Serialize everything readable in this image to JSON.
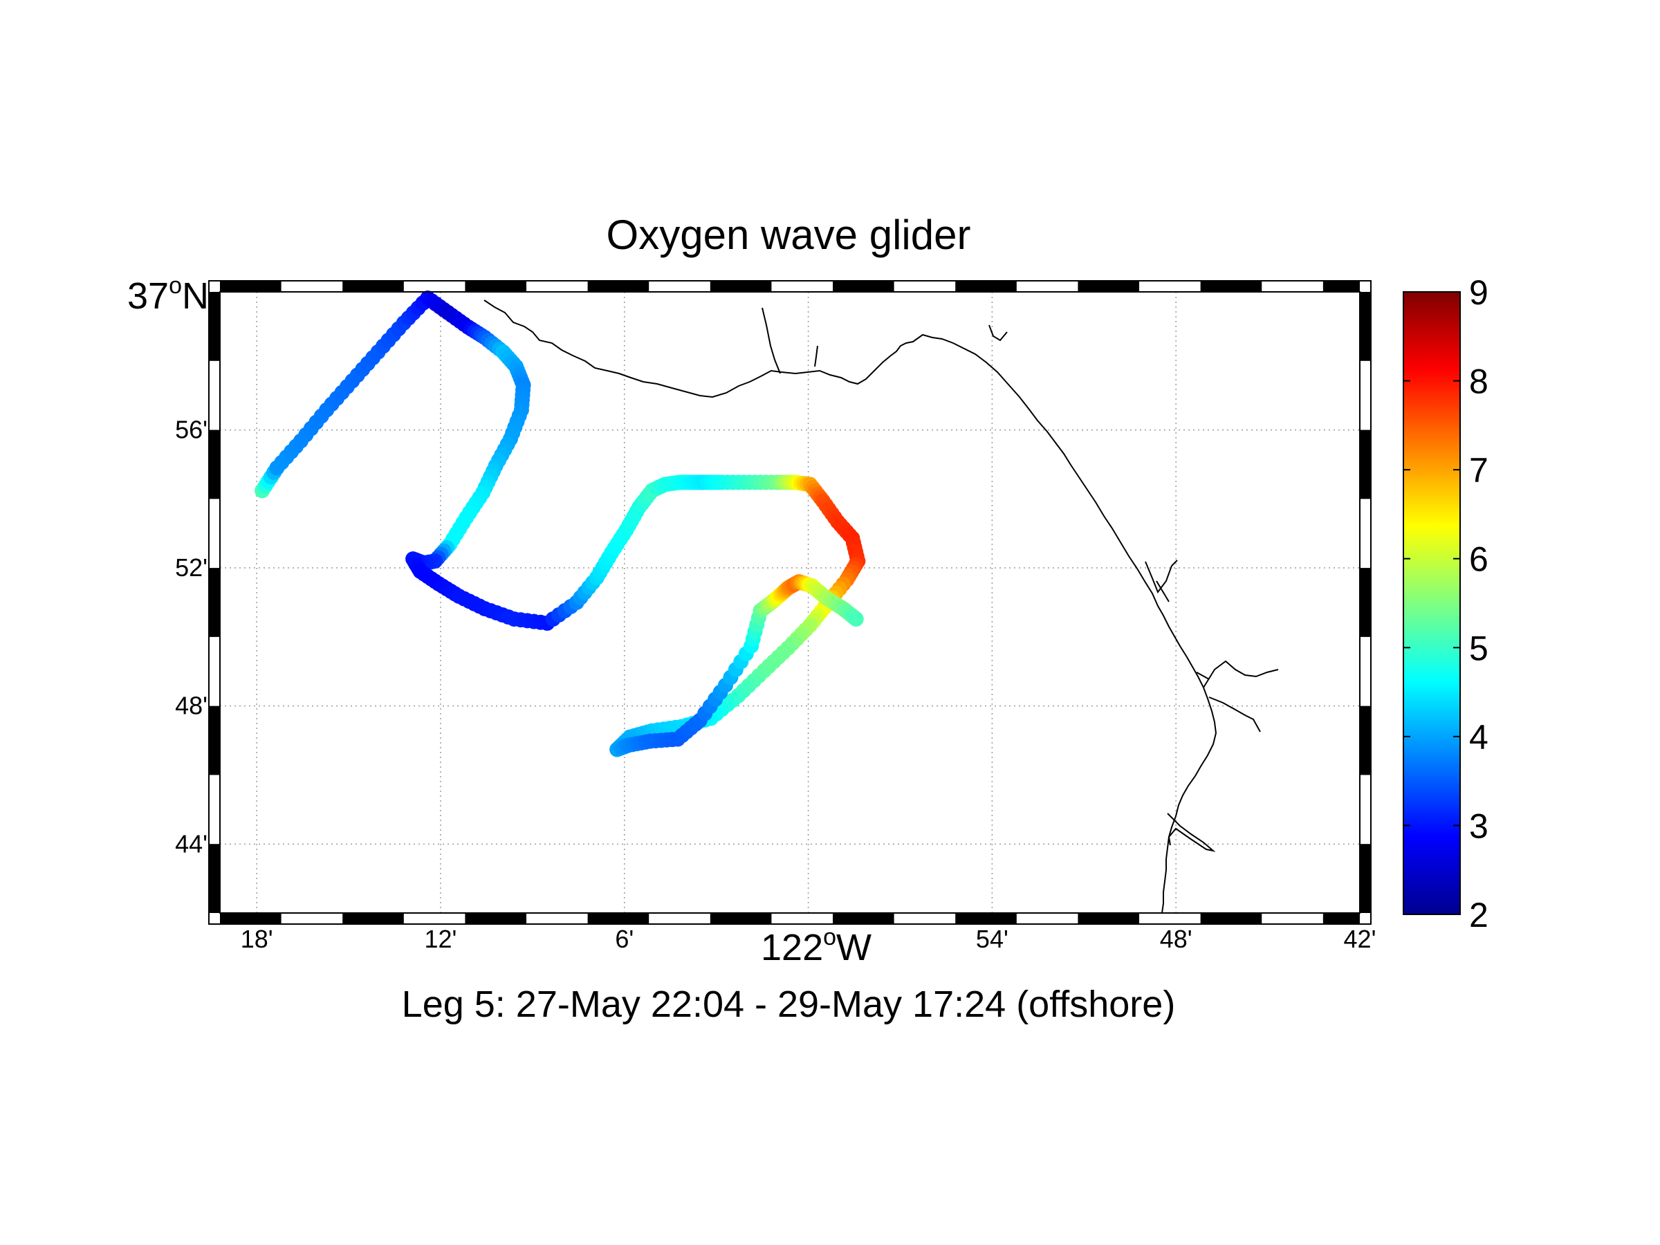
{
  "map": {
    "title": "Oxygen wave glider",
    "subtitle": "Leg 5: 27-May 22:04 - 29-May 17:24 (offshore)",
    "projection": "Mercator",
    "lon_range": [
      -122.32,
      -121.7
    ],
    "lat_range": [
      36.7,
      37.0
    ],
    "x_ticks": [
      {
        "lon": -122.3,
        "label": "18'"
      },
      {
        "lon": -122.2,
        "label": "12'"
      },
      {
        "lon": -122.1,
        "label": "6'"
      },
      {
        "lon": -122.0,
        "label": ""
      },
      {
        "lon": -121.9,
        "label": "54'"
      },
      {
        "lon": -121.8,
        "label": "48'"
      },
      {
        "lon": -121.7,
        "label": "42'"
      }
    ],
    "x_main_label": {
      "num": "122",
      "sup": "o",
      "hem": "W"
    },
    "y_ticks": [
      {
        "lat": 36.9333,
        "label": "56'"
      },
      {
        "lat": 36.8667,
        "label": "52'"
      },
      {
        "lat": 36.8,
        "label": "48'"
      },
      {
        "lat": 36.7333,
        "label": "44'"
      }
    ],
    "y_main_label": {
      "num": "37",
      "sup": "o",
      "hem": "N"
    },
    "grid": true,
    "border_style": "alternating black-white"
  },
  "colorbar": {
    "colormap": "jet",
    "range": [
      2,
      9
    ],
    "ticks": [
      "2",
      "3",
      "4",
      "5",
      "6",
      "7",
      "8",
      "9"
    ],
    "position": "right"
  },
  "chart_data": {
    "type": "scatter",
    "series": [
      {
        "values_meaning": "oxygen",
        "lon": [
          -122.297,
          -122.289,
          -122.276,
          -122.262,
          -122.248,
          -122.234,
          -122.22,
          -122.207,
          -122.196,
          -122.185,
          -122.176,
          -122.166,
          -122.159,
          -122.155,
          -122.156,
          -122.162,
          -122.17,
          -122.177,
          -122.186,
          -122.195,
          -122.203,
          -122.209,
          -122.215,
          -122.211,
          -122.201,
          -122.19,
          -122.176,
          -122.16,
          -122.142,
          -122.126,
          -122.115,
          -122.107,
          -122.099,
          -122.092,
          -122.085,
          -122.078,
          -122.07,
          -122.064,
          -122.057,
          -122.047,
          -122.032,
          -122.017,
          -122.007,
          -121.999,
          -121.992,
          -121.984,
          -121.976,
          -121.973,
          -121.979,
          -121.989,
          -121.999,
          -122.011,
          -122.024,
          -122.038,
          -122.053,
          -122.069,
          -122.085,
          -122.097,
          -122.104,
          -122.098,
          -122.086,
          -122.071,
          -122.059,
          -122.045,
          -122.031,
          -122.026,
          -122.02,
          -122.016,
          -122.011,
          -122.007,
          -122.005,
          -121.998,
          -121.99,
          -121.981,
          -121.974
        ],
        "lat": [
          36.904,
          36.915,
          36.928,
          36.943,
          36.957,
          36.971,
          36.985,
          36.997,
          36.99,
          36.983,
          36.978,
          36.971,
          36.964,
          36.955,
          36.943,
          36.929,
          36.916,
          36.903,
          36.891,
          36.878,
          36.87,
          36.869,
          36.871,
          36.865,
          36.859,
          36.853,
          36.847,
          36.842,
          36.84,
          36.85,
          36.862,
          36.874,
          36.885,
          36.896,
          36.904,
          36.907,
          36.908,
          36.908,
          36.908,
          36.908,
          36.908,
          36.908,
          36.908,
          36.907,
          36.899,
          36.889,
          36.881,
          36.87,
          36.861,
          36.85,
          36.839,
          36.828,
          36.817,
          36.805,
          36.794,
          36.79,
          36.788,
          36.785,
          36.779,
          36.781,
          36.783,
          36.784,
          36.793,
          36.81,
          36.829,
          36.846,
          36.85,
          36.853,
          36.857,
          36.859,
          36.86,
          36.858,
          36.852,
          36.847,
          36.842
        ],
        "oxygen": [
          5.1,
          3.9,
          3.8,
          3.7,
          3.6,
          3.5,
          3.3,
          2.9,
          2.6,
          2.8,
          3.5,
          4.2,
          4.0,
          3.8,
          3.9,
          4.0,
          4.2,
          4.5,
          4.6,
          4.6,
          3.2,
          3.1,
          3.0,
          2.9,
          2.9,
          3.0,
          3.0,
          3.1,
          3.0,
          3.8,
          4.4,
          4.6,
          4.7,
          4.8,
          5.0,
          4.8,
          4.7,
          4.6,
          4.5,
          4.7,
          5.0,
          5.4,
          6.2,
          7.0,
          7.6,
          7.8,
          7.9,
          7.8,
          7.3,
          6.6,
          5.8,
          5.4,
          5.3,
          5.0,
          4.6,
          4.4,
          4.3,
          4.1,
          4.0,
          3.8,
          3.6,
          3.5,
          3.6,
          4.0,
          4.6,
          5.3,
          5.8,
          6.4,
          7.1,
          7.4,
          7.2,
          6.2,
          5.8,
          5.4,
          5.1
        ]
      }
    ]
  }
}
